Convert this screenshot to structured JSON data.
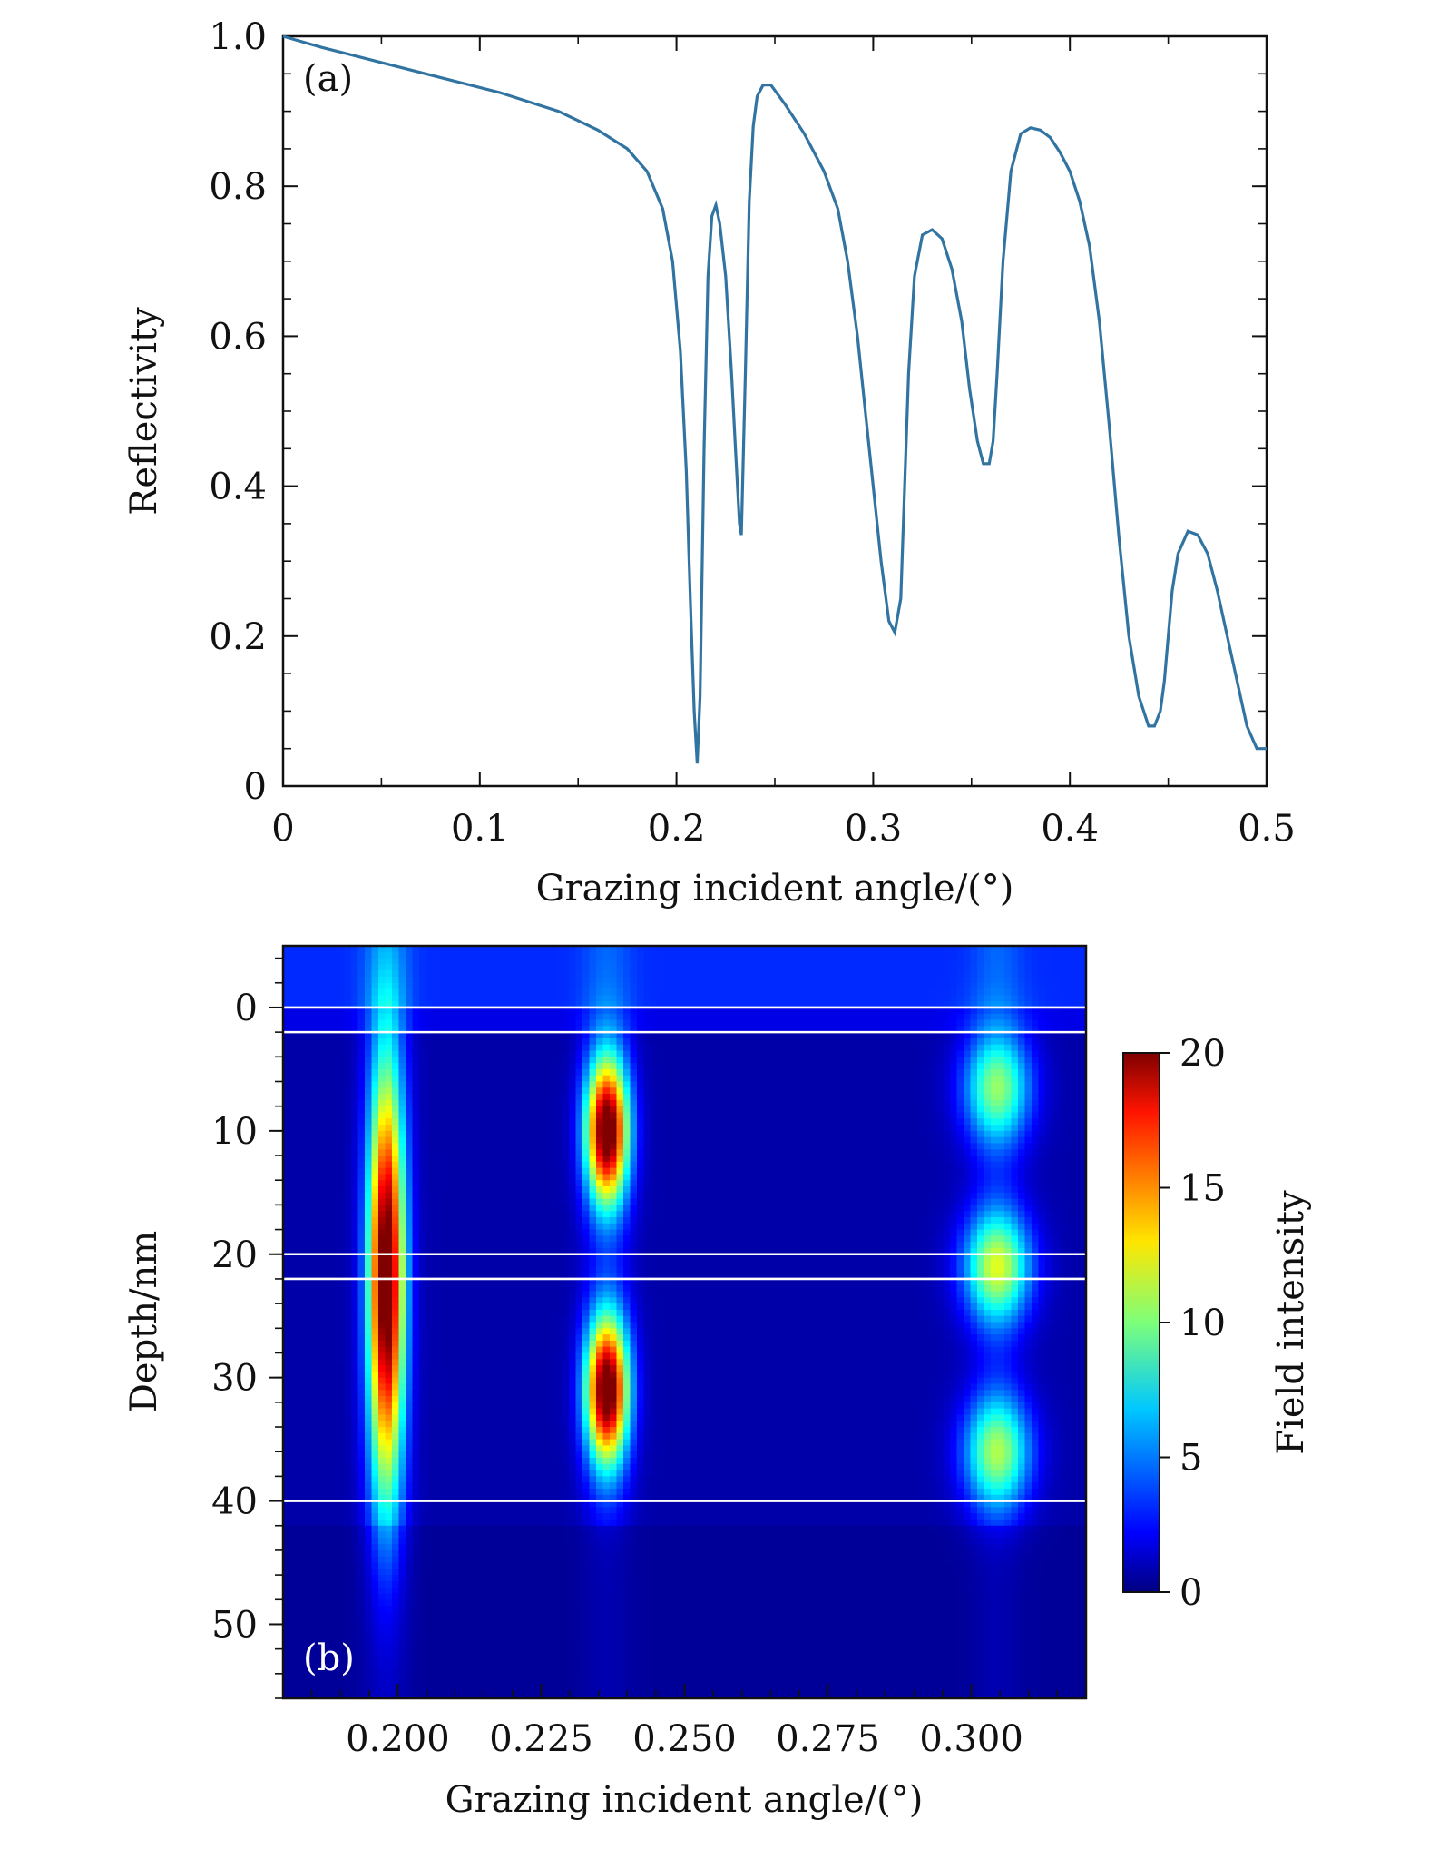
{
  "chart_data": [
    {
      "type": "line",
      "panel_label": "(a)",
      "xlabel": "Grazing incident angle/(°)",
      "ylabel": "Reflectivity",
      "xlim": [
        0,
        0.5
      ],
      "ylim": [
        0,
        1.0
      ],
      "xticks": [
        0,
        0.1,
        0.2,
        0.3,
        0.4,
        0.5
      ],
      "xtick_labels": [
        "0",
        "0.1",
        "0.2",
        "0.3",
        "0.4",
        "0.5"
      ],
      "yticks": [
        0,
        0.2,
        0.4,
        0.6,
        0.8,
        1.0
      ],
      "ytick_labels": [
        "0",
        "0.2",
        "0.4",
        "0.6",
        "0.8",
        "1.0"
      ],
      "grid": false,
      "color": "#3274a1",
      "series": [
        {
          "x": [
            0,
            0.02,
            0.05,
            0.08,
            0.11,
            0.14,
            0.16,
            0.175,
            0.185,
            0.193,
            0.198,
            0.202,
            0.205,
            0.207,
            0.209,
            0.2105,
            0.212,
            0.214,
            0.216,
            0.218,
            0.22,
            0.222,
            0.225,
            0.228,
            0.23,
            0.232,
            0.233,
            0.235,
            0.237,
            0.239,
            0.241,
            0.244,
            0.248,
            0.255,
            0.265,
            0.275,
            0.282,
            0.287,
            0.292,
            0.296,
            0.3,
            0.304,
            0.308,
            0.311,
            0.314,
            0.316,
            0.318,
            0.321,
            0.325,
            0.33,
            0.335,
            0.34,
            0.345,
            0.349,
            0.353,
            0.356,
            0.359,
            0.361,
            0.363,
            0.366,
            0.37,
            0.375,
            0.38,
            0.385,
            0.39,
            0.395,
            0.4,
            0.405,
            0.41,
            0.415,
            0.42,
            0.425,
            0.43,
            0.435,
            0.44,
            0.443,
            0.446,
            0.448,
            0.45,
            0.452,
            0.455,
            0.46,
            0.465,
            0.47,
            0.475,
            0.48,
            0.485,
            0.49,
            0.495,
            0.5
          ],
          "y": [
            1.0,
            0.985,
            0.965,
            0.945,
            0.925,
            0.9,
            0.875,
            0.85,
            0.82,
            0.77,
            0.7,
            0.58,
            0.42,
            0.25,
            0.1,
            0.03,
            0.12,
            0.45,
            0.68,
            0.76,
            0.775,
            0.75,
            0.68,
            0.55,
            0.45,
            0.35,
            0.335,
            0.55,
            0.78,
            0.88,
            0.92,
            0.935,
            0.935,
            0.91,
            0.87,
            0.82,
            0.77,
            0.7,
            0.6,
            0.5,
            0.4,
            0.3,
            0.22,
            0.205,
            0.25,
            0.4,
            0.55,
            0.68,
            0.735,
            0.742,
            0.73,
            0.69,
            0.62,
            0.53,
            0.46,
            0.43,
            0.43,
            0.46,
            0.55,
            0.7,
            0.82,
            0.87,
            0.878,
            0.875,
            0.865,
            0.845,
            0.82,
            0.78,
            0.72,
            0.62,
            0.48,
            0.33,
            0.2,
            0.12,
            0.08,
            0.08,
            0.1,
            0.14,
            0.2,
            0.26,
            0.31,
            0.34,
            0.335,
            0.31,
            0.26,
            0.2,
            0.14,
            0.08,
            0.05,
            0.05
          ]
        }
      ]
    },
    {
      "type": "heatmap",
      "panel_label": "(b)",
      "xlabel": "Grazing incident angle/(°)",
      "ylabel": "Depth/nm",
      "xlim": [
        0.18,
        0.32
      ],
      "ylim": [
        56,
        -5
      ],
      "xticks": [
        0.2,
        0.225,
        0.25,
        0.275,
        0.3
      ],
      "xtick_labels": [
        "0.200",
        "0.225",
        "0.250",
        "0.275",
        "0.300"
      ],
      "yticks": [
        0,
        10,
        20,
        30,
        40,
        50
      ],
      "ytick_labels": [
        "0",
        "10",
        "20",
        "30",
        "40",
        "50"
      ],
      "colormap": "jet",
      "colorbar_label": "Field intensity",
      "colorbar_range": [
        0,
        20
      ],
      "colorbar_ticks": [
        0,
        5,
        10,
        15,
        20
      ],
      "colorbar_tick_labels": [
        "0",
        "5",
        "10",
        "15",
        "20"
      ],
      "layer_boundaries_nm": [
        0,
        2,
        20,
        22,
        40
      ],
      "hotspots": [
        {
          "angle": 0.198,
          "depth": 22,
          "peak": 20
        },
        {
          "angle": 0.2365,
          "depth": 10,
          "peak": 20
        },
        {
          "angle": 0.2365,
          "depth": 31,
          "peak": 20
        },
        {
          "angle": 0.3045,
          "depth": 6.5,
          "peak": 8.5
        },
        {
          "angle": 0.3045,
          "depth": 21,
          "peak": 10
        },
        {
          "angle": 0.3045,
          "depth": 36,
          "peak": 9
        }
      ],
      "background_level": 0.8
    }
  ]
}
